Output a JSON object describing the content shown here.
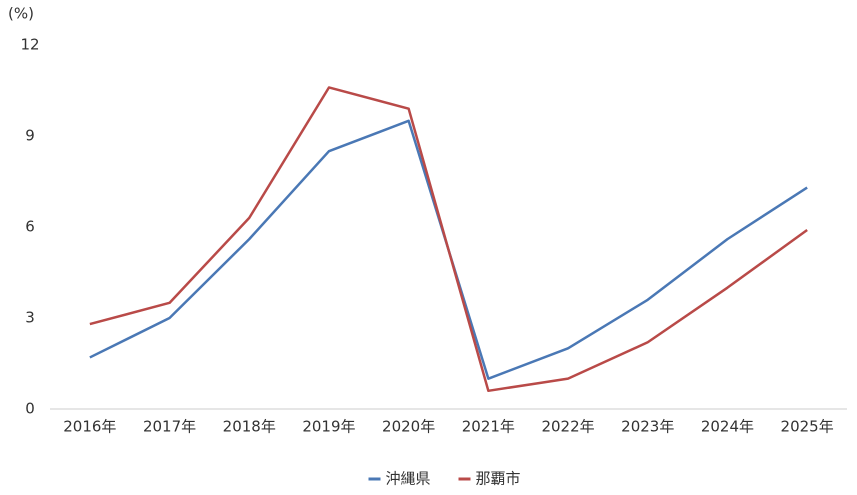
{
  "chart_data": {
    "type": "line",
    "y_unit_label": "(%)",
    "categories": [
      "2016年",
      "2017年",
      "2018年",
      "2019年",
      "2020年",
      "2021年",
      "2022年",
      "2023年",
      "2024年",
      "2025年"
    ],
    "series": [
      {
        "name": "沖縄県",
        "color": "#4a78b5",
        "values": [
          1.7,
          3.0,
          5.6,
          8.5,
          9.5,
          1.0,
          2.0,
          3.6,
          5.6,
          7.3
        ]
      },
      {
        "name": "那覇市",
        "color": "#b94a48",
        "values": [
          2.8,
          3.5,
          6.3,
          10.6,
          9.9,
          0.6,
          1.0,
          2.2,
          4.0,
          5.9
        ]
      }
    ],
    "ylim": [
      0,
      12
    ],
    "yticks": [
      0,
      3,
      6,
      9,
      12
    ],
    "grid": false,
    "legend": "bottom"
  }
}
